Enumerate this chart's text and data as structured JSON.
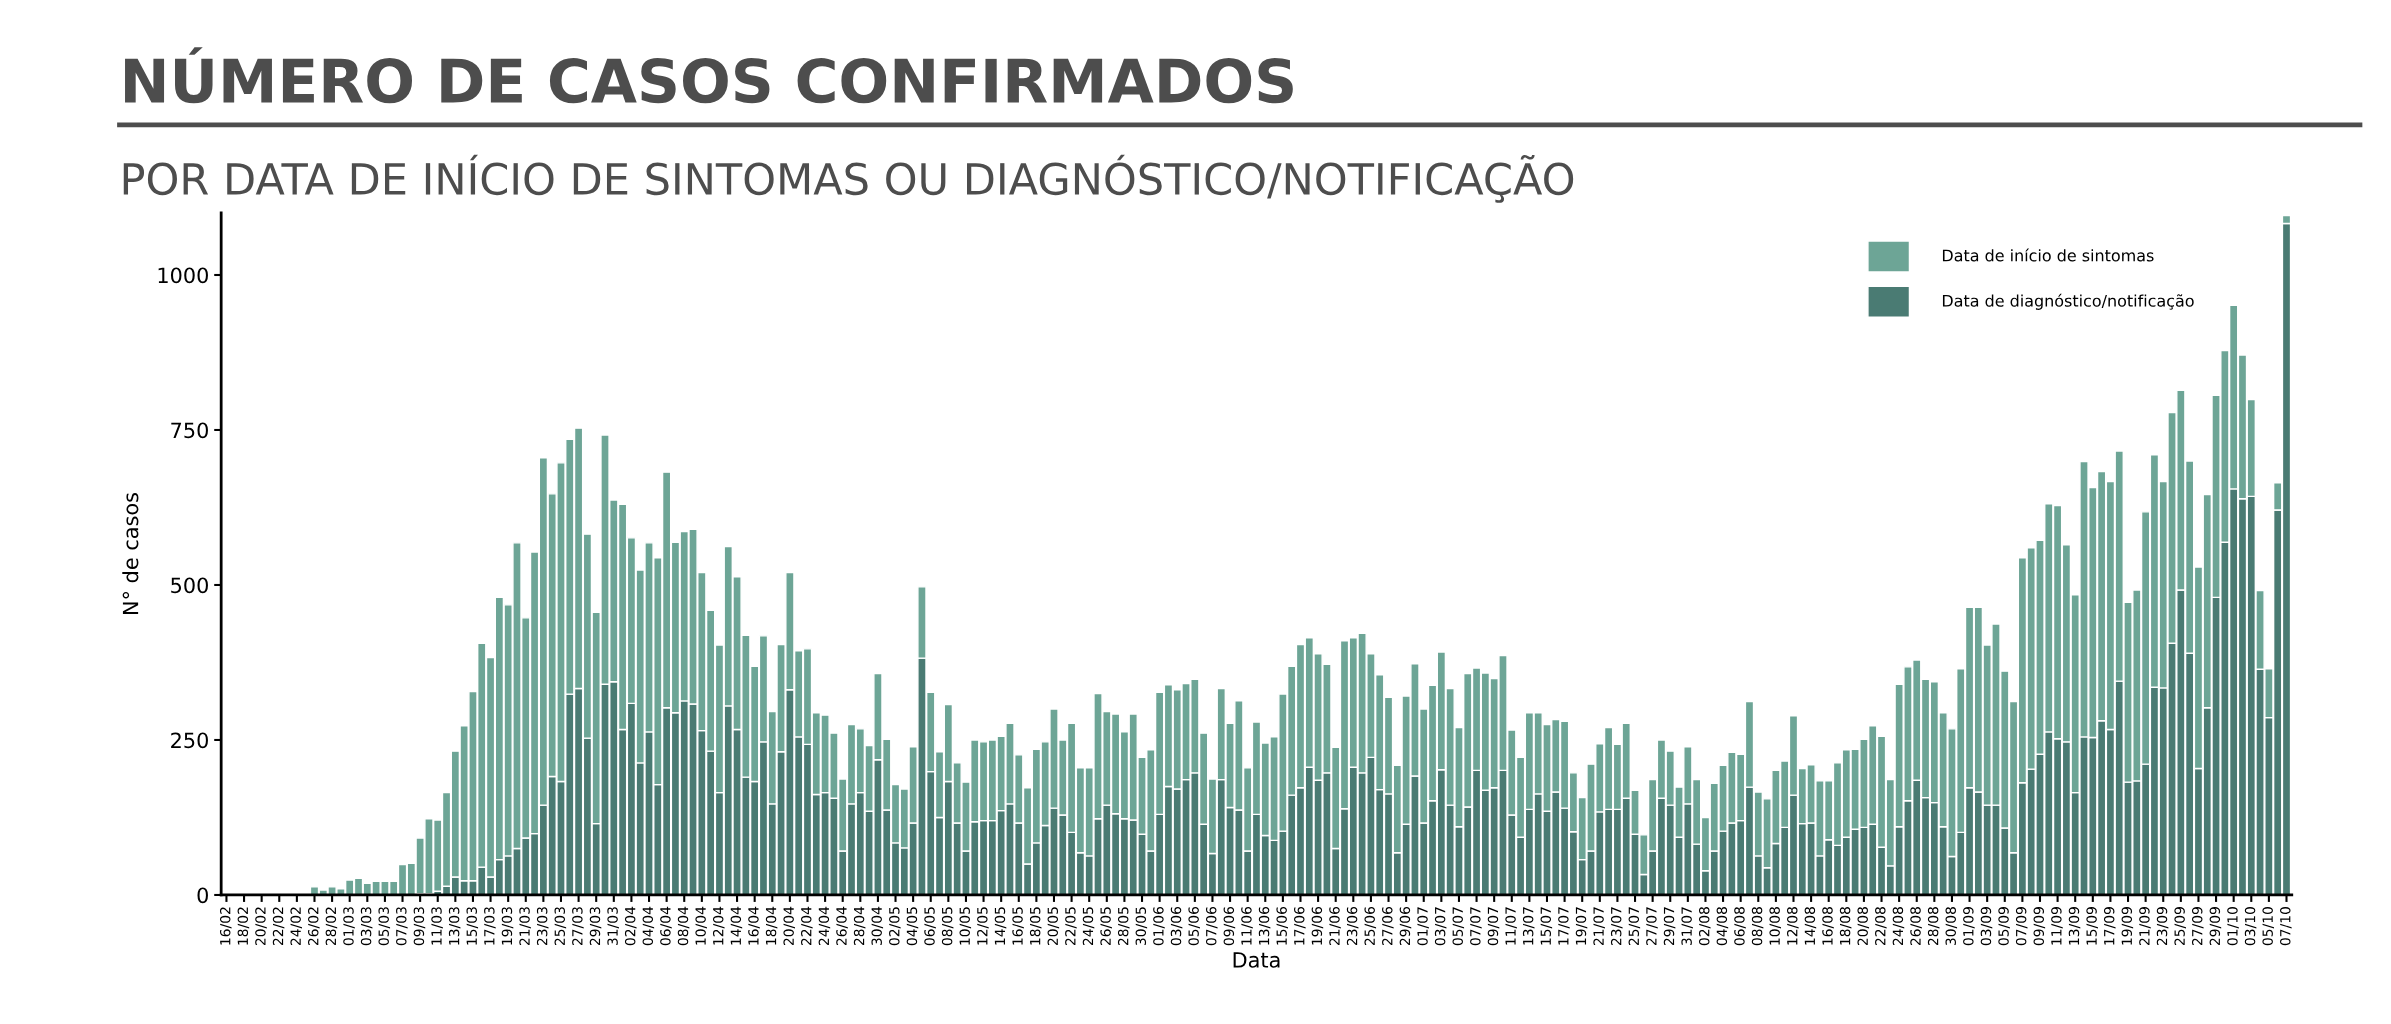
{
  "chart_data": {
    "type": "bar",
    "stacked": true,
    "title": "NÚMERO DE CASOS CONFIRMADOS",
    "subtitle": "POR DATA DE INÍCIO DE SINTOMAS OU DIAGNÓSTICO/NOTIFICAÇÃO",
    "xlabel": "Data",
    "ylabel": "N° de casos",
    "categories": [
      "16/02",
      null,
      "18/02",
      null,
      "20/02",
      null,
      "22/02",
      null,
      "24/02",
      null,
      "26/02",
      null,
      "28/02",
      null,
      "01/03",
      null,
      "03/03",
      null,
      "05/03",
      null,
      "07/03",
      null,
      "09/03",
      null,
      "11/03",
      null,
      "13/03",
      null,
      "15/03",
      null,
      "17/03",
      null,
      "19/03",
      null,
      "21/03",
      null,
      "23/03",
      null,
      "25/03",
      null,
      "27/03",
      null,
      "29/03",
      null,
      "31/03",
      null,
      "02/04",
      null,
      "04/04",
      null,
      "06/04",
      null,
      "08/04",
      null,
      "10/04",
      null,
      "12/04",
      null,
      "14/04",
      null,
      "16/04",
      null,
      "18/04",
      null,
      "20/04",
      null,
      "22/04",
      null,
      "24/04",
      null,
      "26/04",
      null,
      "28/04",
      null,
      "30/04",
      null,
      "02/05",
      null,
      "04/05",
      null,
      "06/05",
      null,
      "08/05",
      null,
      "10/05",
      null,
      "12/05",
      null,
      "14/05",
      null,
      "16/05",
      null,
      "18/05",
      null,
      "20/05",
      null,
      "22/05",
      null,
      "24/05",
      null,
      "26/05",
      null,
      "28/05",
      null,
      "30/05",
      null,
      "01/06",
      null,
      "03/06",
      null,
      "05/06",
      null,
      "07/06",
      null,
      "09/06",
      null,
      "11/06",
      null,
      "13/06",
      null,
      "15/06",
      null,
      "17/06",
      null,
      "19/06",
      null,
      "21/06",
      null,
      "23/06",
      null,
      "25/06",
      null,
      "27/06",
      null,
      "29/06",
      null,
      "01/07",
      null,
      "03/07",
      null,
      "05/07",
      null,
      "07/07",
      null,
      "09/07",
      null,
      "11/07",
      null,
      "13/07",
      null,
      "15/07",
      null,
      "17/07",
      null,
      "19/07",
      null,
      "21/07",
      null,
      "23/07",
      null,
      "25/07",
      null,
      "27/07",
      null,
      "29/07",
      null,
      "31/07",
      null,
      "02/08",
      null,
      "04/08",
      null,
      "06/08",
      null,
      "08/08",
      null,
      "10/08",
      null,
      "12/08",
      null,
      "14/08",
      null,
      "16/08",
      null,
      "18/08",
      null,
      "20/08",
      null,
      "22/08",
      null,
      "24/08",
      null,
      "26/08",
      null,
      "28/08",
      null,
      "30/08",
      null,
      "01/09",
      null,
      "03/09",
      null,
      "05/09",
      null,
      "07/09",
      null,
      "09/09",
      null,
      "11/09",
      null,
      "13/09",
      null,
      "15/09",
      null,
      "17/09",
      null,
      "19/09",
      null,
      "21/09",
      null,
      "23/09",
      null,
      "25/09",
      null,
      "27/09",
      null,
      "29/09",
      null,
      "01/10",
      null,
      "03/10",
      null,
      "05/10",
      null,
      "07/10"
    ],
    "series": [
      {
        "name": "Data de diagnóstico/notificação",
        "color": "#4a7b73",
        "values": [
          0,
          0,
          0,
          0,
          0,
          0,
          0,
          0,
          0,
          0,
          0,
          0,
          0,
          0,
          0,
          0,
          0,
          0,
          0,
          0,
          0,
          0,
          2,
          2,
          6,
          14,
          29,
          23,
          23,
          45,
          29,
          57,
          63,
          75,
          92,
          99,
          145,
          191,
          183,
          324,
          333,
          253,
          115,
          340,
          344,
          267,
          309,
          213,
          263,
          178,
          302,
          294,
          313,
          308,
          265,
          232,
          165,
          305,
          267,
          190,
          183,
          247,
          147,
          231,
          331,
          255,
          243,
          162,
          165,
          156,
          71,
          147,
          165,
          135,
          218,
          137,
          84,
          76,
          116,
          382,
          199,
          125,
          183,
          116,
          71,
          118,
          120,
          120,
          136,
          147,
          116,
          50,
          84,
          112,
          140,
          129,
          101,
          68,
          63,
          123,
          145,
          131,
          123,
          121,
          98,
          71,
          130,
          175,
          171,
          186,
          197,
          114,
          67,
          186,
          141,
          137,
          71,
          130,
          96,
          88,
          103,
          161,
          173,
          206,
          185,
          197,
          75,
          139,
          206,
          197,
          222,
          170,
          163,
          68,
          114,
          192,
          116,
          152,
          202,
          145,
          110,
          142,
          201,
          169,
          173,
          201,
          129,
          93,
          138,
          163,
          135,
          166,
          140,
          102,
          57,
          71,
          134,
          138,
          138,
          156,
          98,
          33,
          71,
          156,
          145,
          93,
          147,
          82,
          39,
          71,
          103,
          116,
          120,
          174,
          63,
          44,
          83,
          109,
          161,
          115,
          116,
          63,
          89,
          80,
          93,
          106,
          109,
          114,
          77,
          47,
          110,
          152,
          185,
          157,
          149,
          110,
          62,
          101,
          173,
          166,
          145,
          145,
          108,
          68,
          181,
          203,
          227,
          263,
          252,
          247,
          165,
          255,
          254,
          281,
          267,
          345,
          182,
          184,
          211,
          335,
          334,
          406,
          492,
          390,
          204,
          302,
          480,
          569,
          655,
          639,
          643,
          364,
          286,
          621,
          1083
        ]
      },
      {
        "name": "Data de início de sintomas",
        "color": "#6da596",
        "values": [
          0,
          0,
          0,
          0,
          0,
          1,
          0,
          1,
          1,
          1,
          13,
          8,
          13,
          10,
          24,
          27,
          19,
          22,
          22,
          22,
          49,
          51,
          90,
          121,
          115,
          151,
          203,
          250,
          305,
          361,
          354,
          423,
          405,
          493,
          355,
          454,
          560,
          456,
          514,
          411,
          420,
          329,
          341,
          402,
          293,
          363,
          267,
          311,
          305,
          366,
          380,
          275,
          273,
          282,
          255,
          227,
          238,
          257,
          246,
          229,
          186,
          171,
          149,
          173,
          189,
          139,
          154,
          132,
          125,
          105,
          116,
          128,
          103,
          106,
          139,
          114,
          94,
          95,
          123,
          115,
          128,
          106,
          124,
          97,
          111,
          132,
          127,
          130,
          120,
          130,
          110,
          123,
          151,
          135,
          160,
          121,
          176,
          137,
          142,
          202,
          151,
          161,
          140,
          171,
          124,
          163,
          197,
          164,
          160,
          155,
          151,
          147,
          120,
          147,
          136,
          176,
          134,
          149,
          149,
          167,
          221,
          208,
          231,
          209,
          204,
          175,
          163,
          271,
          209,
          225,
          167,
          185,
          156,
          141,
          207,
          181,
          184,
          186,
          190,
          188,
          160,
          215,
          165,
          189,
          176,
          185,
          137,
          129,
          156,
          131,
          140,
          117,
          140,
          95,
          100,
          140,
          110,
          132,
          105,
          121,
          71,
          64,
          115,
          94,
          87,
          81,
          92,
          104,
          86,
          109,
          106,
          114,
          107,
          138,
          103,
          111,
          118,
          107,
          128,
          89,
          94,
          121,
          95,
          133,
          141,
          129,
          142,
          159,
          179,
          139,
          230,
          216,
          194,
          191,
          195,
          184,
          206,
          264,
          291,
          298,
          258,
          292,
          253,
          244,
          363,
          357,
          345,
          368,
          376,
          318,
          319,
          444,
          403,
          402,
          400,
          371,
          290,
          308,
          407,
          375,
          333,
          372,
          322,
          310,
          325,
          344,
          326,
          309,
          296,
          232,
          156,
          127,
          79,
          44,
          13
        ]
      }
    ],
    "ylim": [
      0,
      1100
    ],
    "yticks": [
      0,
      250,
      500,
      750,
      1000
    ],
    "grid": false,
    "legend": "top right"
  }
}
